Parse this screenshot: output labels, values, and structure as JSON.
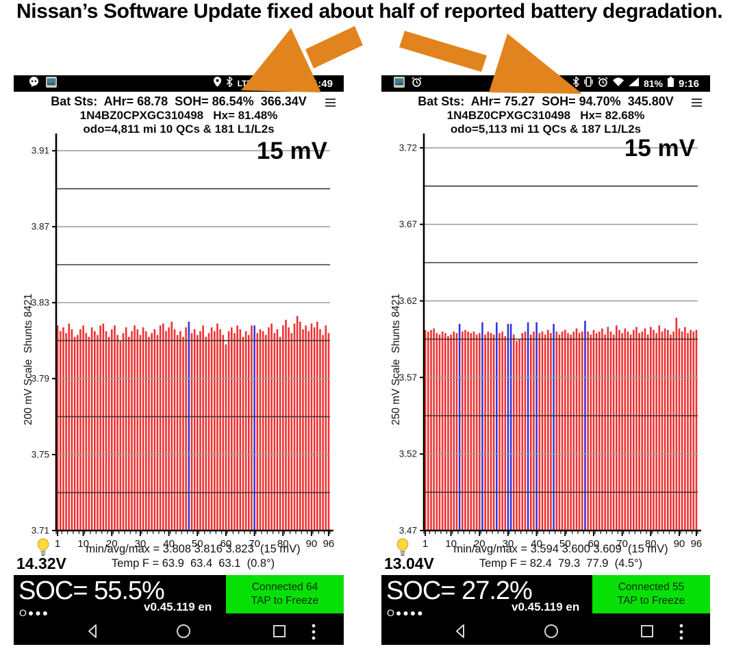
{
  "title": "Nissan’s Software Update fixed about half of reported battery degradation.",
  "colors": {
    "arrow": "#e2841e",
    "bar_red": "#f03030",
    "bar_blue": "#3434d8",
    "connect_green": "#07e007",
    "status_black": "#000000"
  },
  "phones": [
    {
      "status_bar": {
        "network_label": "LTE",
        "time": "11:49"
      },
      "header": {
        "line1": "Bat Sts:  AHr= 68.78  SOH= 86.54%  366.34V",
        "line2": "1N4BZ0CPXGC310498   Hx= 81.48%",
        "line3": "odo=4,811 mi 10 QCs & 181 L1/L2s"
      },
      "voltage": "14.32V",
      "soc": {
        "label": "SOC= 55.5%",
        "dots": "O●●●",
        "version": "v0.45.119 en",
        "connect_line1": "Connected 64",
        "connect_line2": "TAP to Freeze"
      }
    },
    {
      "status_bar": {
        "battery_percent": "81%",
        "time": "9:16"
      },
      "header": {
        "line1": "Bat Sts:  AHr= 75.27  SOH= 94.70%  345.80V",
        "line2": "1N4BZ0CPXGC310498   Hx= 82.68%",
        "line3": "odo=5,113 mi 11 QCs & 187 L1/L2s"
      },
      "voltage": "13.04V",
      "soc": {
        "label": "SOC= 27.2%",
        "dots": "O●●●●",
        "version": "v0.45.119 en",
        "connect_line1": "Connected 55",
        "connect_line2": "TAP to Freeze"
      }
    }
  ],
  "chart_data": [
    {
      "type": "bar",
      "title": "15 mV",
      "ylabel": "200 mV Scale  Shunts 8421",
      "xlabel": "",
      "ylim": [
        3.71,
        3.918
      ],
      "yticks_labeled": [
        3.91,
        3.87,
        3.83,
        3.79,
        3.75,
        3.71
      ],
      "yticks_minor": [
        3.89,
        3.85,
        3.81,
        3.77,
        3.73
      ],
      "xticks": [
        1,
        10,
        20,
        30,
        40,
        50,
        60,
        70,
        80,
        90,
        96
      ],
      "caption1": "min/avg/max = 3.808 3.816 3.823  (15 mV)",
      "caption2": "Temp F = 63.9  63.4  63.1  (0.8°)",
      "bar_color": "#f03030",
      "blue_color": "#3434d8",
      "blue_indexes": [
        47,
        70
      ],
      "values": [
        3.818,
        3.815,
        3.817,
        3.814,
        3.819,
        3.816,
        3.812,
        3.813,
        3.816,
        3.818,
        3.814,
        3.812,
        3.817,
        3.815,
        3.813,
        3.818,
        3.819,
        3.815,
        3.812,
        3.816,
        3.818,
        3.813,
        3.81,
        3.814,
        3.817,
        3.812,
        3.815,
        3.818,
        3.816,
        3.813,
        3.817,
        3.815,
        3.812,
        3.814,
        3.816,
        3.813,
        3.818,
        3.819,
        3.815,
        3.817,
        3.82,
        3.816,
        3.813,
        3.815,
        3.812,
        3.817,
        3.82,
        3.814,
        3.816,
        3.813,
        3.815,
        3.818,
        3.812,
        3.814,
        3.817,
        3.815,
        3.819,
        3.816,
        3.813,
        3.808,
        3.815,
        3.817,
        3.814,
        3.818,
        3.816,
        3.812,
        3.815,
        3.813,
        3.818,
        3.818,
        3.814,
        3.816,
        3.815,
        3.813,
        3.817,
        3.819,
        3.814,
        3.816,
        3.812,
        3.818,
        3.821,
        3.817,
        3.814,
        3.819,
        3.823,
        3.82,
        3.816,
        3.818,
        3.815,
        3.819,
        3.817,
        3.82,
        3.816,
        3.813,
        3.818,
        3.814
      ]
    },
    {
      "type": "bar",
      "title": "15 mV",
      "ylabel": "250 mV Scale  Shunts 8421",
      "xlabel": "",
      "ylim": [
        3.47,
        3.728
      ],
      "yticks_labeled": [
        3.72,
        3.67,
        3.62,
        3.57,
        3.52,
        3.47
      ],
      "yticks_minor": [
        3.695,
        3.645,
        3.595,
        3.545,
        3.495
      ],
      "xticks": [
        1,
        10,
        20,
        30,
        40,
        50,
        60,
        70,
        80,
        90,
        96
      ],
      "caption1": "min/avg/max = 3.594 3.600 3.609  (15 mV)",
      "caption2": "Temp F = 82.4  79.3  77.9  (4.5°)",
      "bar_color": "#f03030",
      "blue_color": "#3434d8",
      "blue_indexes": [
        13,
        21,
        26,
        30,
        31,
        37,
        40,
        46,
        57
      ],
      "values": [
        3.601,
        3.6,
        3.601,
        3.602,
        3.599,
        3.598,
        3.6,
        3.599,
        3.597,
        3.598,
        3.6,
        3.599,
        3.605,
        3.6,
        3.601,
        3.6,
        3.599,
        3.6,
        3.598,
        3.599,
        3.606,
        3.598,
        3.6,
        3.599,
        3.598,
        3.606,
        3.599,
        3.6,
        3.597,
        3.605,
        3.605,
        3.598,
        3.594,
        3.595,
        3.599,
        3.6,
        3.606,
        3.598,
        3.6,
        3.606,
        3.599,
        3.6,
        3.598,
        3.601,
        3.599,
        3.605,
        3.6,
        3.598,
        3.6,
        3.601,
        3.599,
        3.598,
        3.6,
        3.602,
        3.599,
        3.6,
        3.607,
        3.6,
        3.598,
        3.601,
        3.599,
        3.6,
        3.602,
        3.598,
        3.603,
        3.6,
        3.598,
        3.604,
        3.601,
        3.599,
        3.602,
        3.6,
        3.598,
        3.601,
        3.603,
        3.599,
        3.6,
        3.602,
        3.598,
        3.603,
        3.601,
        3.599,
        3.604,
        3.6,
        3.602,
        3.601,
        3.598,
        3.6,
        3.609,
        3.602,
        3.6,
        3.603,
        3.599,
        3.601,
        3.6,
        3.601
      ]
    }
  ]
}
